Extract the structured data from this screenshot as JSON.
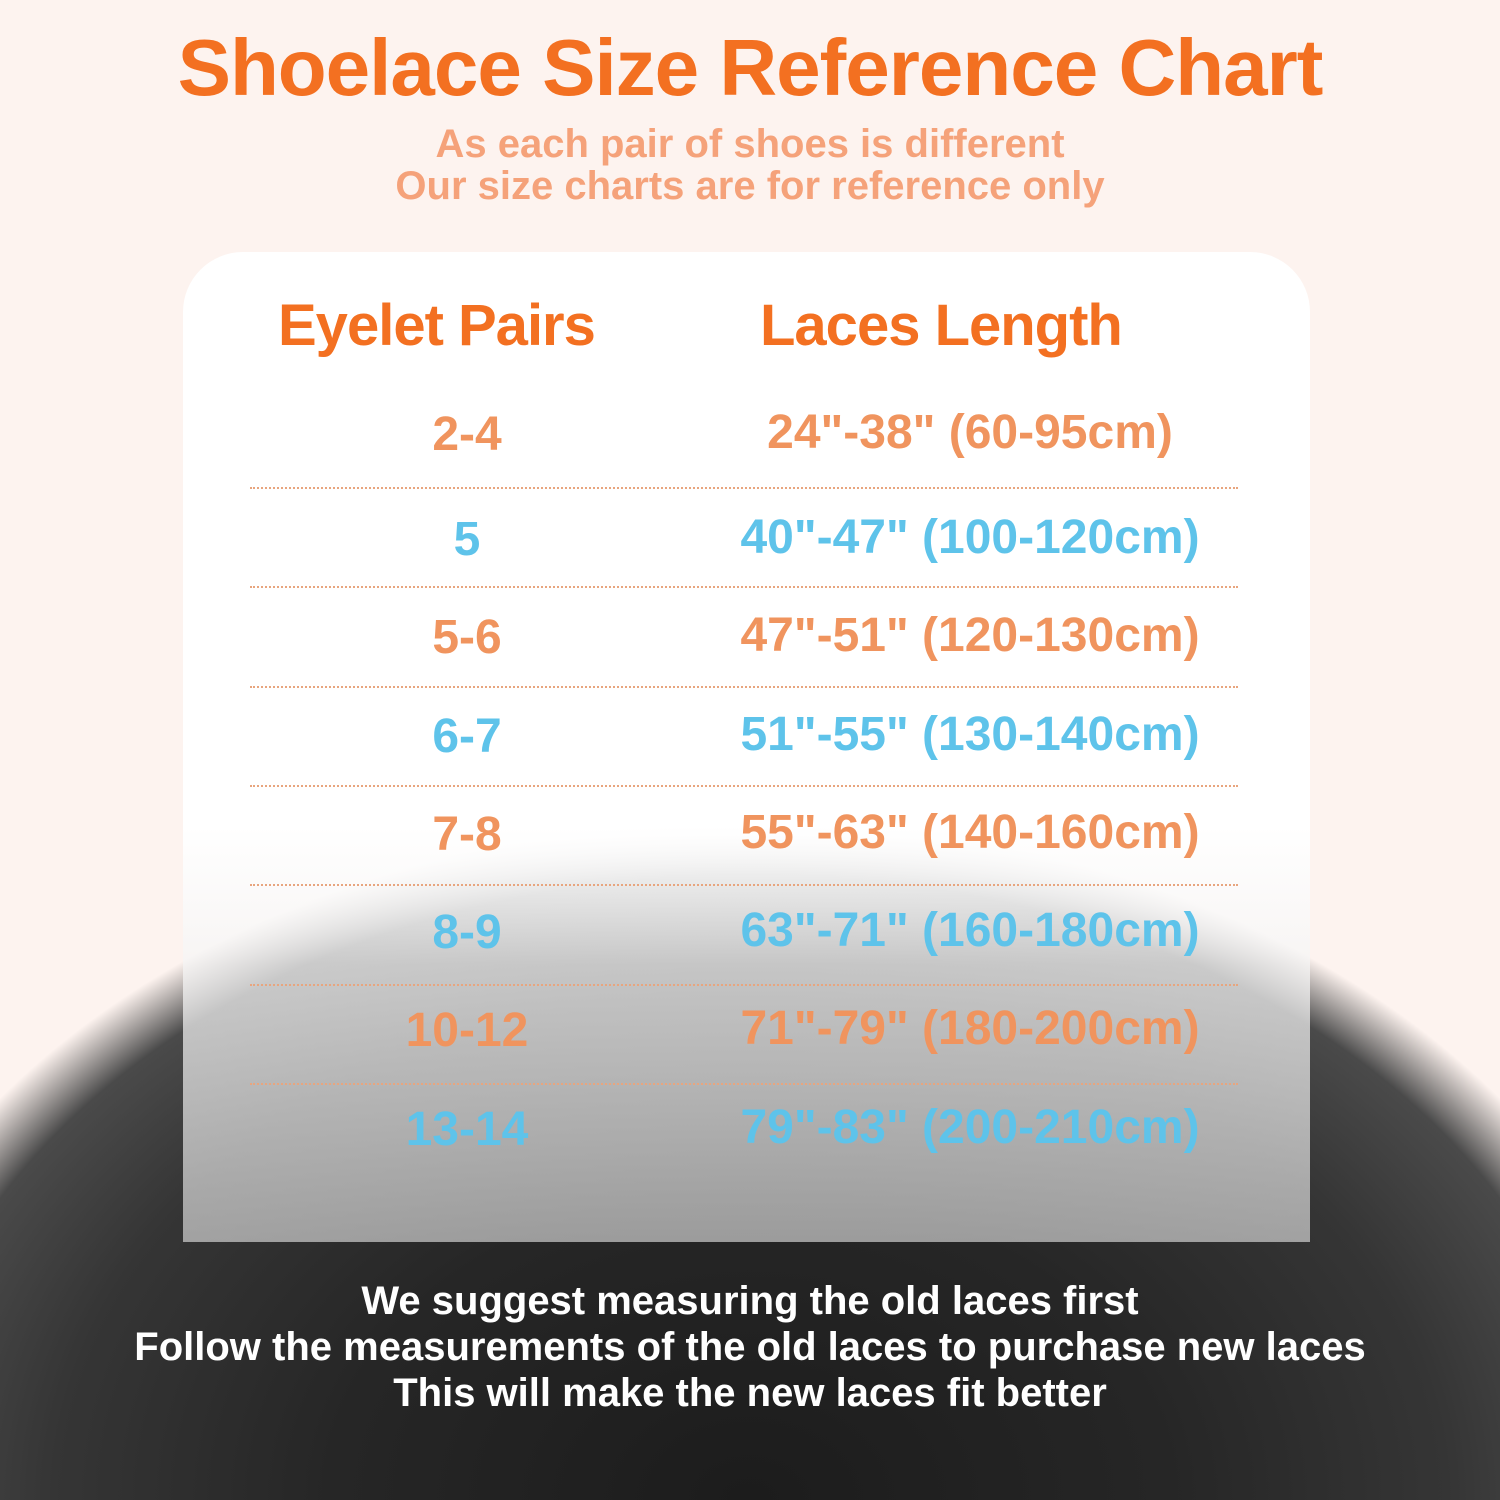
{
  "title": "Shoelace Size Reference Chart",
  "subtitle": [
    "As each pair of shoes is different",
    "Our size charts are for reference only"
  ],
  "colors": {
    "title": "#f37021",
    "orange": "#f0945e",
    "blue": "#5ec3ea",
    "subtitle": "#f5a27a"
  },
  "table": {
    "headers": [
      "Eyelet Pairs",
      "Laces Length"
    ],
    "rows": [
      {
        "pairs": "2-4",
        "length": "24\"-38\" (60-95cm)",
        "color": "orange"
      },
      {
        "pairs": "5",
        "length": "40\"-47\" (100-120cm)",
        "color": "blue"
      },
      {
        "pairs": "5-6",
        "length": "47\"-51\" (120-130cm)",
        "color": "orange"
      },
      {
        "pairs": "6-7",
        "length": "51\"-55\" (130-140cm)",
        "color": "blue"
      },
      {
        "pairs": "7-8",
        "length": "55\"-63\" (140-160cm)",
        "color": "orange"
      },
      {
        "pairs": "8-9",
        "length": "63\"-71\" (160-180cm)",
        "color": "blue"
      },
      {
        "pairs": "10-12",
        "length": "71\"-79\" (180-200cm)",
        "color": "orange"
      },
      {
        "pairs": "13-14",
        "length": "79\"-83\" (200-210cm)",
        "color": "blue"
      }
    ]
  },
  "footer": [
    "We suggest measuring the old laces first",
    "Follow the measurements of the old laces to purchase new laces",
    "This will make the new laces fit better"
  ]
}
